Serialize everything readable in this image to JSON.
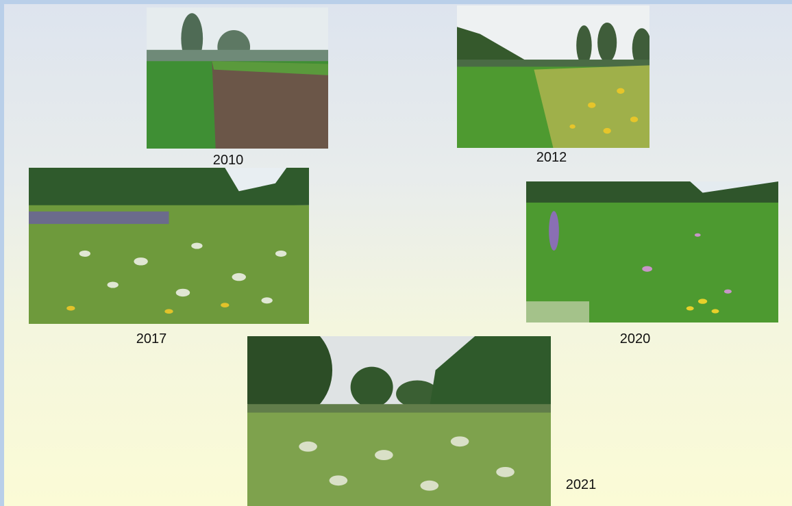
{
  "photos": [
    {
      "label": "2010"
    },
    {
      "label": "2012"
    },
    {
      "label": "2017"
    },
    {
      "label": "2020"
    },
    {
      "label": "2021"
    }
  ]
}
